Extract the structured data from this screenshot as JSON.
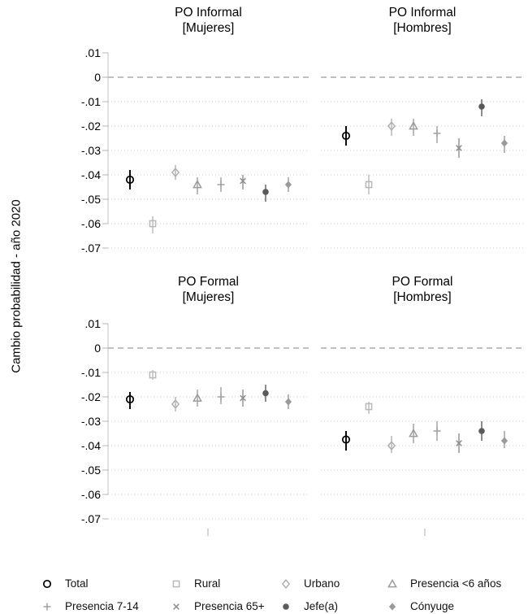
{
  "figure": {
    "background": "#ffffff"
  },
  "colors": {
    "grid_dotted": "#cccccc",
    "zero_dashed": "#9a9a9a",
    "axis_line": "#c0c0c0",
    "tick_mark": "#b4b4b4",
    "x_tick": "#c8c8c8",
    "text": "#000000"
  },
  "chart_data": {
    "type": "scatter",
    "ylabel": "Cambio probabilidad - año 2020",
    "ytick_labels": [
      ".01",
      "0",
      "-.01",
      "-.02",
      "-.03",
      "-.04",
      "-.05",
      "-.06",
      "-.07"
    ],
    "ytick_values": [
      0.01,
      0,
      -0.01,
      -0.02,
      -0.03,
      -0.04,
      -0.05,
      -0.06,
      -0.07
    ],
    "ylim": [
      -0.07,
      0.01
    ],
    "grid": "horizontal-dotted",
    "zero_line": "dashed",
    "legend_position": "bottom",
    "series": [
      {
        "name": "Total",
        "marker": "circle-open",
        "color": "#000000"
      },
      {
        "name": "Rural",
        "marker": "square-open",
        "color": "#b8b8b8"
      },
      {
        "name": "Urbano",
        "marker": "diamond-open",
        "color": "#b0b0b0"
      },
      {
        "name": "Presencia <6 años",
        "marker": "triangle-open",
        "color": "#9c9c9c"
      },
      {
        "name": "Presencia 7-14",
        "marker": "plus",
        "color": "#a0a0a0"
      },
      {
        "name": "Presencia 65+",
        "marker": "x",
        "color": "#8e8e8e"
      },
      {
        "name": "Jefe(a)",
        "marker": "circle-filled",
        "color": "#5a5a5a"
      },
      {
        "name": "Cónyuge",
        "marker": "diamond-filled",
        "color": "#9a9a9a"
      }
    ],
    "panels": [
      {
        "title": "PO Informal",
        "subtitle": "[Mujeres]",
        "estimates": [
          -0.042,
          -0.06,
          -0.039,
          -0.044,
          -0.044,
          -0.0425,
          -0.047,
          -0.044
        ],
        "ci_low": [
          -0.046,
          -0.064,
          -0.042,
          -0.048,
          -0.047,
          -0.046,
          -0.051,
          -0.047
        ],
        "ci_high": [
          -0.038,
          -0.057,
          -0.036,
          -0.041,
          -0.041,
          -0.04,
          -0.044,
          -0.041
        ]
      },
      {
        "title": "PO Informal",
        "subtitle": "[Hombres]",
        "estimates": [
          -0.024,
          -0.044,
          -0.02,
          -0.02,
          -0.023,
          -0.029,
          -0.012,
          -0.027
        ],
        "ci_low": [
          -0.028,
          -0.048,
          -0.024,
          -0.024,
          -0.027,
          -0.033,
          -0.016,
          -0.031
        ],
        "ci_high": [
          -0.02,
          -0.04,
          -0.017,
          -0.017,
          -0.02,
          -0.025,
          -0.009,
          -0.024
        ]
      },
      {
        "title": "PO Formal",
        "subtitle": "[Mujeres]",
        "estimates": [
          -0.021,
          -0.011,
          -0.023,
          -0.0205,
          -0.02,
          -0.0205,
          -0.0185,
          -0.022
        ],
        "ci_low": [
          -0.025,
          -0.013,
          -0.026,
          -0.024,
          -0.023,
          -0.024,
          -0.022,
          -0.025
        ],
        "ci_high": [
          -0.018,
          -0.009,
          -0.02,
          -0.017,
          -0.016,
          -0.017,
          -0.015,
          -0.019
        ]
      },
      {
        "title": "PO Formal",
        "subtitle": "[Hombres]",
        "estimates": [
          -0.0375,
          -0.024,
          -0.04,
          -0.035,
          -0.034,
          -0.039,
          -0.034,
          -0.038
        ],
        "ci_low": [
          -0.042,
          -0.027,
          -0.043,
          -0.039,
          -0.038,
          -0.043,
          -0.038,
          -0.041
        ],
        "ci_high": [
          -0.034,
          -0.022,
          -0.036,
          -0.031,
          -0.03,
          -0.035,
          -0.03,
          -0.034
        ]
      }
    ],
    "legend": {
      "rows": [
        [
          "Total",
          "Rural",
          "Urbano",
          "Presencia <6 años"
        ],
        [
          "Presencia 7-14",
          "Presencia 65+",
          "Jefe(a)",
          "Cónyuge"
        ]
      ]
    }
  }
}
